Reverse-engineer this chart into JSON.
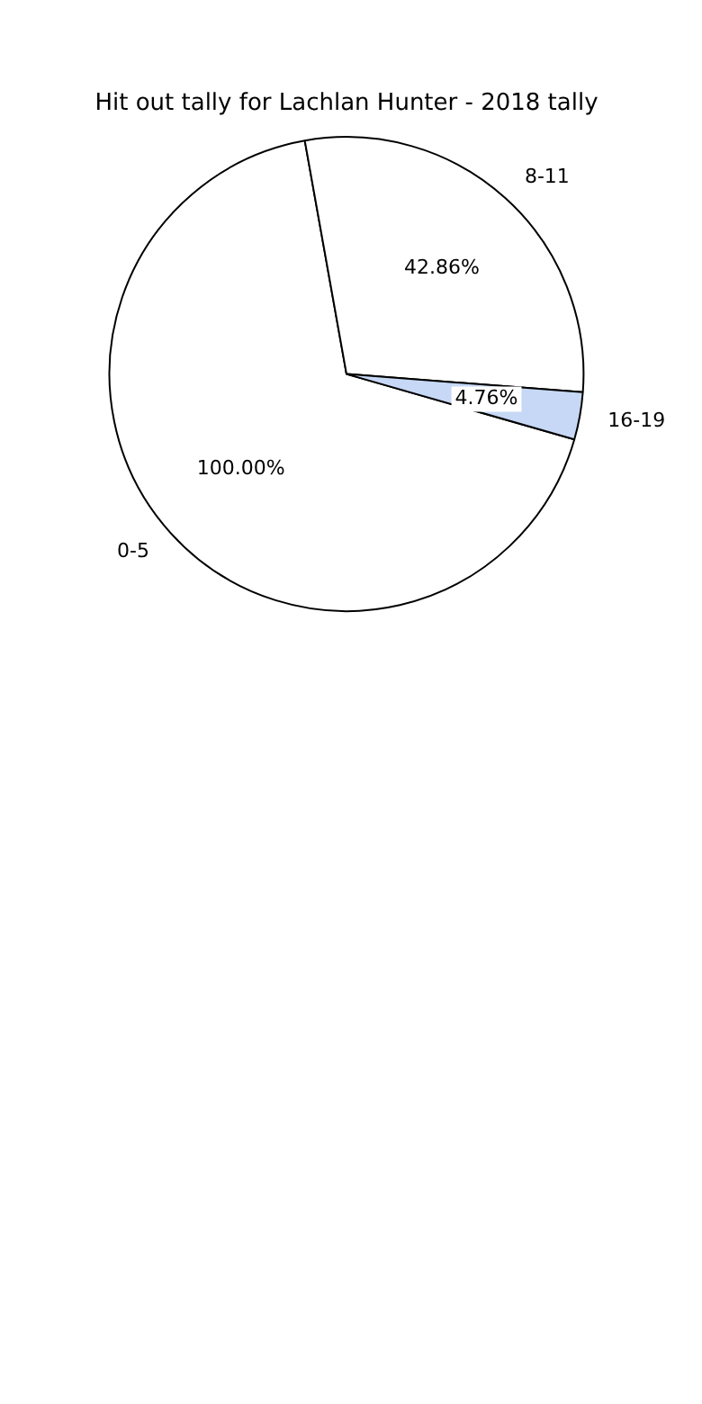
{
  "chart_data": {
    "type": "pie",
    "title": "Hit out tally for Lachlan Hunter - 2018 tally",
    "categories": [
      "0-5",
      "8-11",
      "16-19"
    ],
    "values": [
      100,
      42.86,
      4.76
    ],
    "value_labels": [
      "100.00%",
      "42.86%",
      "4.76%"
    ],
    "colors": [
      "#ffffff",
      "#ffffff",
      "#c6d8f5"
    ],
    "legend": false
  }
}
